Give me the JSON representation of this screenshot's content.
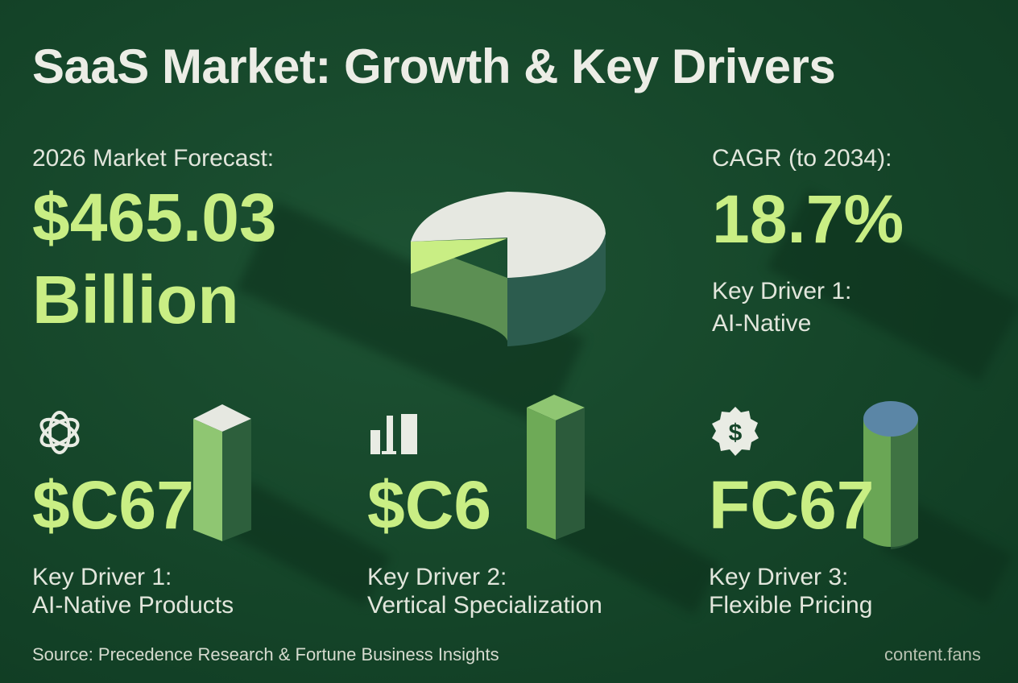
{
  "title": "SaaS Market: Growth & Key Drivers",
  "forecast": {
    "label": "2026 Market Forecast:",
    "value": "$465.03",
    "unit": "Billion"
  },
  "cagr": {
    "label": "CAGR (to 2034):",
    "value": "18.7%",
    "driver_line1": "Key Driver 1:",
    "driver_line2": "AI-Native"
  },
  "drivers": [
    {
      "icon": "openai-knot-icon",
      "value": "$C67",
      "line1": "Key Driver 1:",
      "line2": "AI-Native Products"
    },
    {
      "icon": "bar-chart-icon",
      "value": "$C6",
      "line1": "Key Driver 2:",
      "line2": "Vertical Specialization"
    },
    {
      "icon": "dollar-badge-icon",
      "value": "FC67",
      "line1": "Key Driver 3:",
      "line2": "Flexible Pricing"
    }
  ],
  "footer": {
    "source": "Source: Precedence Research & Fortune Business Insights",
    "brand": "content.fans"
  },
  "colors": {
    "background": "#154529",
    "accent": "#c9ee84",
    "text": "#e9ece4",
    "blue": "#5b86a6"
  }
}
